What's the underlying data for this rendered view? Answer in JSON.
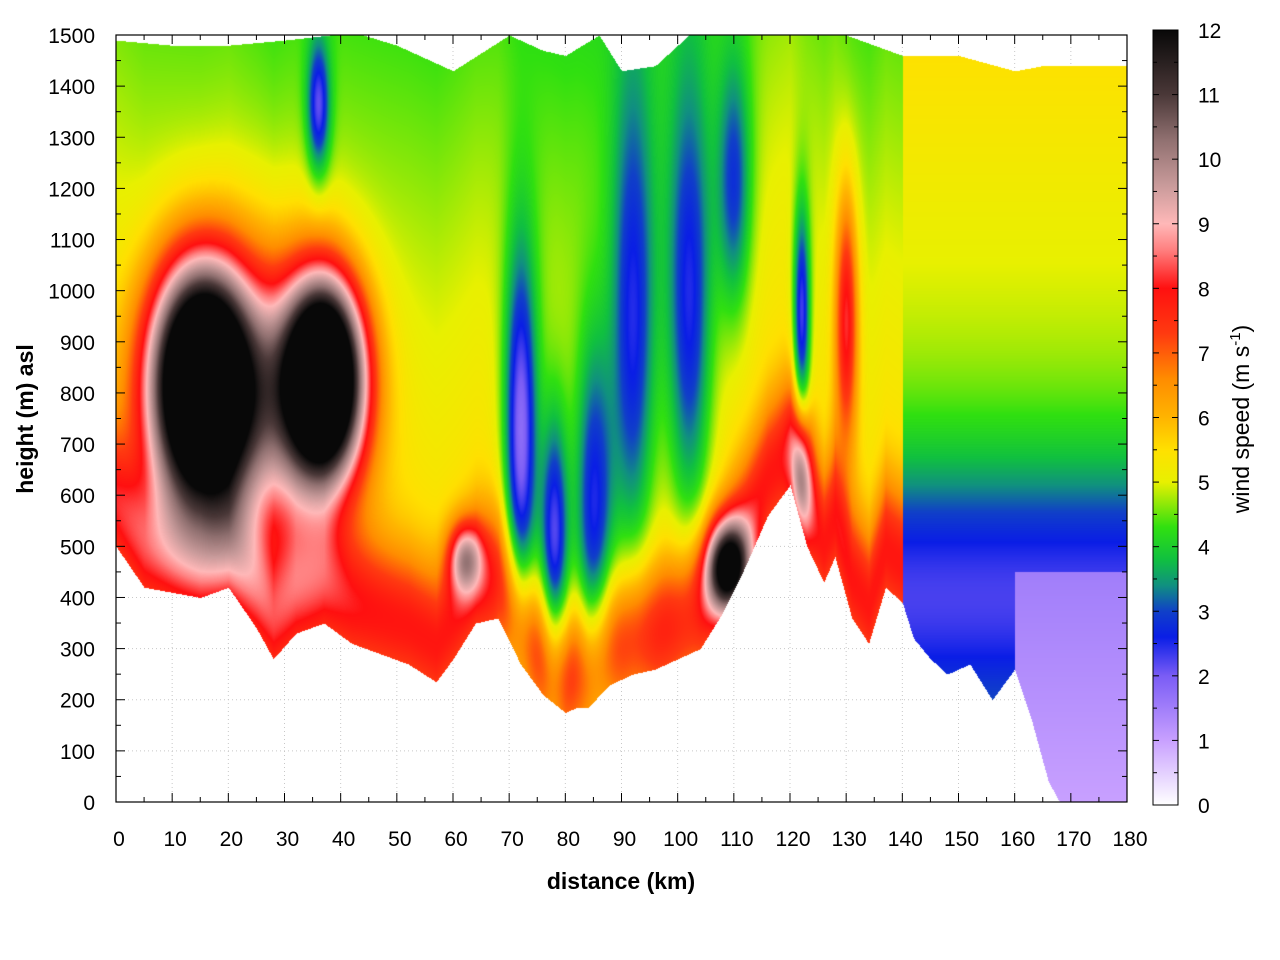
{
  "chart_data": {
    "type": "heatmap",
    "title": "",
    "xlabel": "distance (km)",
    "ylabel": "height (m) asl",
    "colorbar_label": "wind speed (m s-1)",
    "colorbar_label_parts": {
      "main": "wind speed (m s",
      "sup": "-1",
      "close": ")"
    },
    "xlim": [
      0,
      180
    ],
    "ylim": [
      0,
      1500
    ],
    "clim": [
      0,
      12
    ],
    "x_ticks": [
      0,
      10,
      20,
      30,
      40,
      50,
      60,
      70,
      80,
      90,
      100,
      110,
      120,
      130,
      140,
      150,
      160,
      170,
      180
    ],
    "y_ticks": [
      0,
      100,
      200,
      300,
      400,
      500,
      600,
      700,
      800,
      900,
      1000,
      1100,
      1200,
      1300,
      1400,
      1500
    ],
    "colorbar_ticks": [
      0,
      1,
      2,
      3,
      4,
      5,
      6,
      7,
      8,
      9,
      10,
      11,
      12
    ],
    "grid": true,
    "colormap": [
      [
        0,
        "#ffffff"
      ],
      [
        1,
        "#c8a0ff"
      ],
      [
        2,
        "#7a5cf5"
      ],
      [
        2.6,
        "#0a1ee6"
      ],
      [
        3,
        "#1040c8"
      ],
      [
        3.4,
        "#109080"
      ],
      [
        3.8,
        "#10c040"
      ],
      [
        4.3,
        "#30e010"
      ],
      [
        5,
        "#e8f000"
      ],
      [
        5.5,
        "#ffe000"
      ],
      [
        6,
        "#ffb400"
      ],
      [
        6.6,
        "#ff8c00"
      ],
      [
        7.3,
        "#ff3a10"
      ],
      [
        8,
        "#ff1010"
      ],
      [
        8.6,
        "#ff8080"
      ],
      [
        9,
        "#ffb8b8"
      ],
      [
        9.6,
        "#c89a9a"
      ],
      [
        10.3,
        "#907070"
      ],
      [
        11,
        "#4a3838"
      ],
      [
        12,
        "#080808"
      ]
    ],
    "terrain": [
      [
        0,
        500
      ],
      [
        5,
        420
      ],
      [
        10,
        410
      ],
      [
        15,
        400
      ],
      [
        20,
        420
      ],
      [
        25,
        340
      ],
      [
        28,
        280
      ],
      [
        32,
        330
      ],
      [
        37,
        350
      ],
      [
        42,
        310
      ],
      [
        47,
        290
      ],
      [
        52,
        270
      ],
      [
        57,
        235
      ],
      [
        60,
        280
      ],
      [
        64,
        350
      ],
      [
        68,
        360
      ],
      [
        72,
        270
      ],
      [
        76,
        210
      ],
      [
        80,
        175
      ],
      [
        82,
        185
      ],
      [
        84,
        185
      ],
      [
        88,
        230
      ],
      [
        92,
        250
      ],
      [
        96,
        260
      ],
      [
        100,
        280
      ],
      [
        104,
        300
      ],
      [
        108,
        370
      ],
      [
        112,
        460
      ],
      [
        116,
        560
      ],
      [
        120,
        620
      ],
      [
        123,
        500
      ],
      [
        126,
        430
      ],
      [
        128,
        480
      ],
      [
        131,
        360
      ],
      [
        134,
        310
      ],
      [
        137,
        420
      ],
      [
        140,
        390
      ],
      [
        142,
        320
      ],
      [
        145,
        280
      ],
      [
        148,
        250
      ],
      [
        152,
        270
      ],
      [
        156,
        200
      ],
      [
        160,
        260
      ],
      [
        163,
        160
      ],
      [
        166,
        40
      ],
      [
        168,
        0
      ],
      [
        180,
        0
      ]
    ],
    "top": [
      [
        0,
        1490
      ],
      [
        10,
        1480
      ],
      [
        20,
        1480
      ],
      [
        30,
        1490
      ],
      [
        38,
        1500
      ],
      [
        44,
        1500
      ],
      [
        50,
        1480
      ],
      [
        60,
        1430
      ],
      [
        70,
        1500
      ],
      [
        76,
        1470
      ],
      [
        80,
        1460
      ],
      [
        86,
        1500
      ],
      [
        90,
        1430
      ],
      [
        96,
        1440
      ],
      [
        102,
        1500
      ],
      [
        110,
        1500
      ],
      [
        118,
        1500
      ],
      [
        124,
        1500
      ],
      [
        130,
        1500
      ],
      [
        140,
        1460
      ],
      [
        150,
        1460
      ],
      [
        160,
        1430
      ],
      [
        165,
        1440
      ],
      [
        180,
        1440
      ]
    ],
    "features": [
      {
        "x": 15,
        "y": 820,
        "sx": 9,
        "sy": 230,
        "value": 11.2
      },
      {
        "x": 37,
        "y": 830,
        "sx": 7,
        "sy": 190,
        "value": 10.4
      },
      {
        "x": 28,
        "y": 780,
        "sx": 12,
        "sy": 300,
        "value": 3.0
      },
      {
        "x": 62,
        "y": 480,
        "sx": 3,
        "sy": 70,
        "value": 3.0
      },
      {
        "x": 72,
        "y": 700,
        "sx": 3,
        "sy": 380,
        "value": -3.5
      },
      {
        "x": 78,
        "y": 500,
        "sx": 2.5,
        "sy": 260,
        "value": -3.2
      },
      {
        "x": 85,
        "y": 550,
        "sx": 3.5,
        "sy": 350,
        "value": -2.8
      },
      {
        "x": 92,
        "y": 900,
        "sx": 4,
        "sy": 500,
        "value": -2.5
      },
      {
        "x": 102,
        "y": 950,
        "sx": 4,
        "sy": 450,
        "value": -2.5
      },
      {
        "x": 110,
        "y": 1200,
        "sx": 3,
        "sy": 250,
        "value": -2.0
      },
      {
        "x": 109,
        "y": 460,
        "sx": 4,
        "sy": 90,
        "value": 5.6
      },
      {
        "x": 122,
        "y": 950,
        "sx": 1.5,
        "sy": 220,
        "value": -3.0
      },
      {
        "x": 122,
        "y": 650,
        "sx": 2,
        "sy": 120,
        "value": 2.5
      },
      {
        "x": 130,
        "y": 950,
        "sx": 2,
        "sy": 250,
        "value": 3.0
      },
      {
        "x": 36,
        "y": 1360,
        "sx": 2,
        "sy": 130,
        "value": -2.5
      }
    ]
  }
}
